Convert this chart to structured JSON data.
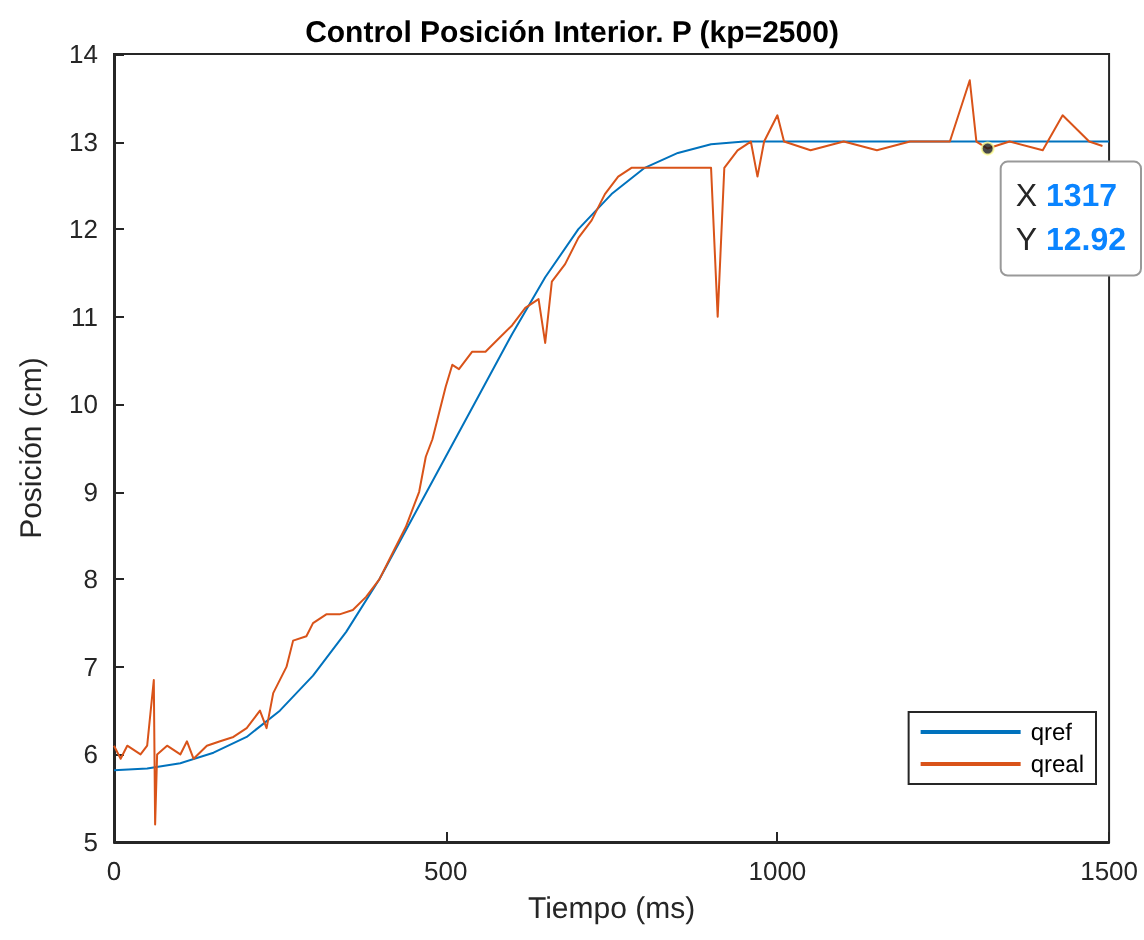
{
  "chart_data": {
    "type": "line",
    "title": "Control Posición Interior. P (kp=2500)",
    "xlabel": "Tiempo (ms)",
    "ylabel": "Posición (cm)",
    "xlim": [
      0,
      1500
    ],
    "xticks": [
      0,
      500,
      1000,
      1500
    ],
    "ylim": [
      5,
      14
    ],
    "yticks": [
      5,
      6,
      7,
      8,
      9,
      10,
      11,
      12,
      13,
      14
    ],
    "grid": false,
    "legend": "bottom right",
    "marker": "none",
    "line_style": "solid",
    "annotations": [
      {
        "text": "X 1317\nY 12.92",
        "x": 1317,
        "y": 12.92
      }
    ],
    "series": [
      {
        "name": "qref",
        "color": "#0072bd",
        "x": [
          0,
          50,
          100,
          150,
          200,
          250,
          300,
          350,
          400,
          450,
          500,
          550,
          600,
          650,
          700,
          750,
          800,
          850,
          900,
          950,
          1000,
          1100,
          1200,
          1300,
          1400,
          1500
        ],
        "values": [
          5.82,
          5.84,
          5.9,
          6.02,
          6.2,
          6.5,
          6.9,
          7.4,
          8.0,
          8.7,
          9.4,
          10.1,
          10.8,
          11.45,
          12.0,
          12.4,
          12.7,
          12.87,
          12.97,
          13.0,
          13.0,
          13.0,
          13.0,
          13.0,
          13.0,
          13.0
        ]
      },
      {
        "name": "qreal",
        "color": "#d95319",
        "x": [
          0,
          10,
          20,
          40,
          50,
          60,
          62,
          65,
          80,
          100,
          110,
          120,
          140,
          160,
          180,
          200,
          220,
          230,
          240,
          260,
          270,
          290,
          300,
          320,
          340,
          360,
          380,
          400,
          420,
          440,
          460,
          470,
          480,
          490,
          500,
          510,
          520,
          540,
          560,
          580,
          600,
          620,
          640,
          650,
          660,
          680,
          700,
          720,
          740,
          760,
          780,
          800,
          850,
          900,
          910,
          920,
          940,
          960,
          970,
          980,
          1000,
          1010,
          1050,
          1100,
          1150,
          1200,
          1260,
          1290,
          1300,
          1317,
          1350,
          1400,
          1430,
          1470,
          1490
        ],
        "values": [
          6.1,
          5.95,
          6.1,
          6.0,
          6.1,
          6.85,
          5.2,
          6.0,
          6.1,
          6.0,
          6.15,
          5.95,
          6.1,
          6.15,
          6.2,
          6.3,
          6.5,
          6.3,
          6.7,
          7.0,
          7.3,
          7.35,
          7.5,
          7.6,
          7.6,
          7.65,
          7.8,
          8.0,
          8.3,
          8.6,
          9.0,
          9.4,
          9.6,
          9.9,
          10.2,
          10.45,
          10.4,
          10.6,
          10.6,
          10.75,
          10.9,
          11.1,
          11.2,
          10.7,
          11.4,
          11.6,
          11.9,
          12.1,
          12.4,
          12.6,
          12.7,
          12.7,
          12.7,
          12.7,
          11.0,
          12.7,
          12.9,
          13.0,
          12.6,
          13.0,
          13.3,
          13.0,
          12.9,
          13.0,
          12.9,
          13.0,
          13.0,
          13.7,
          13.0,
          12.92,
          13.0,
          12.9,
          13.3,
          13.0,
          12.95
        ]
      }
    ]
  }
}
